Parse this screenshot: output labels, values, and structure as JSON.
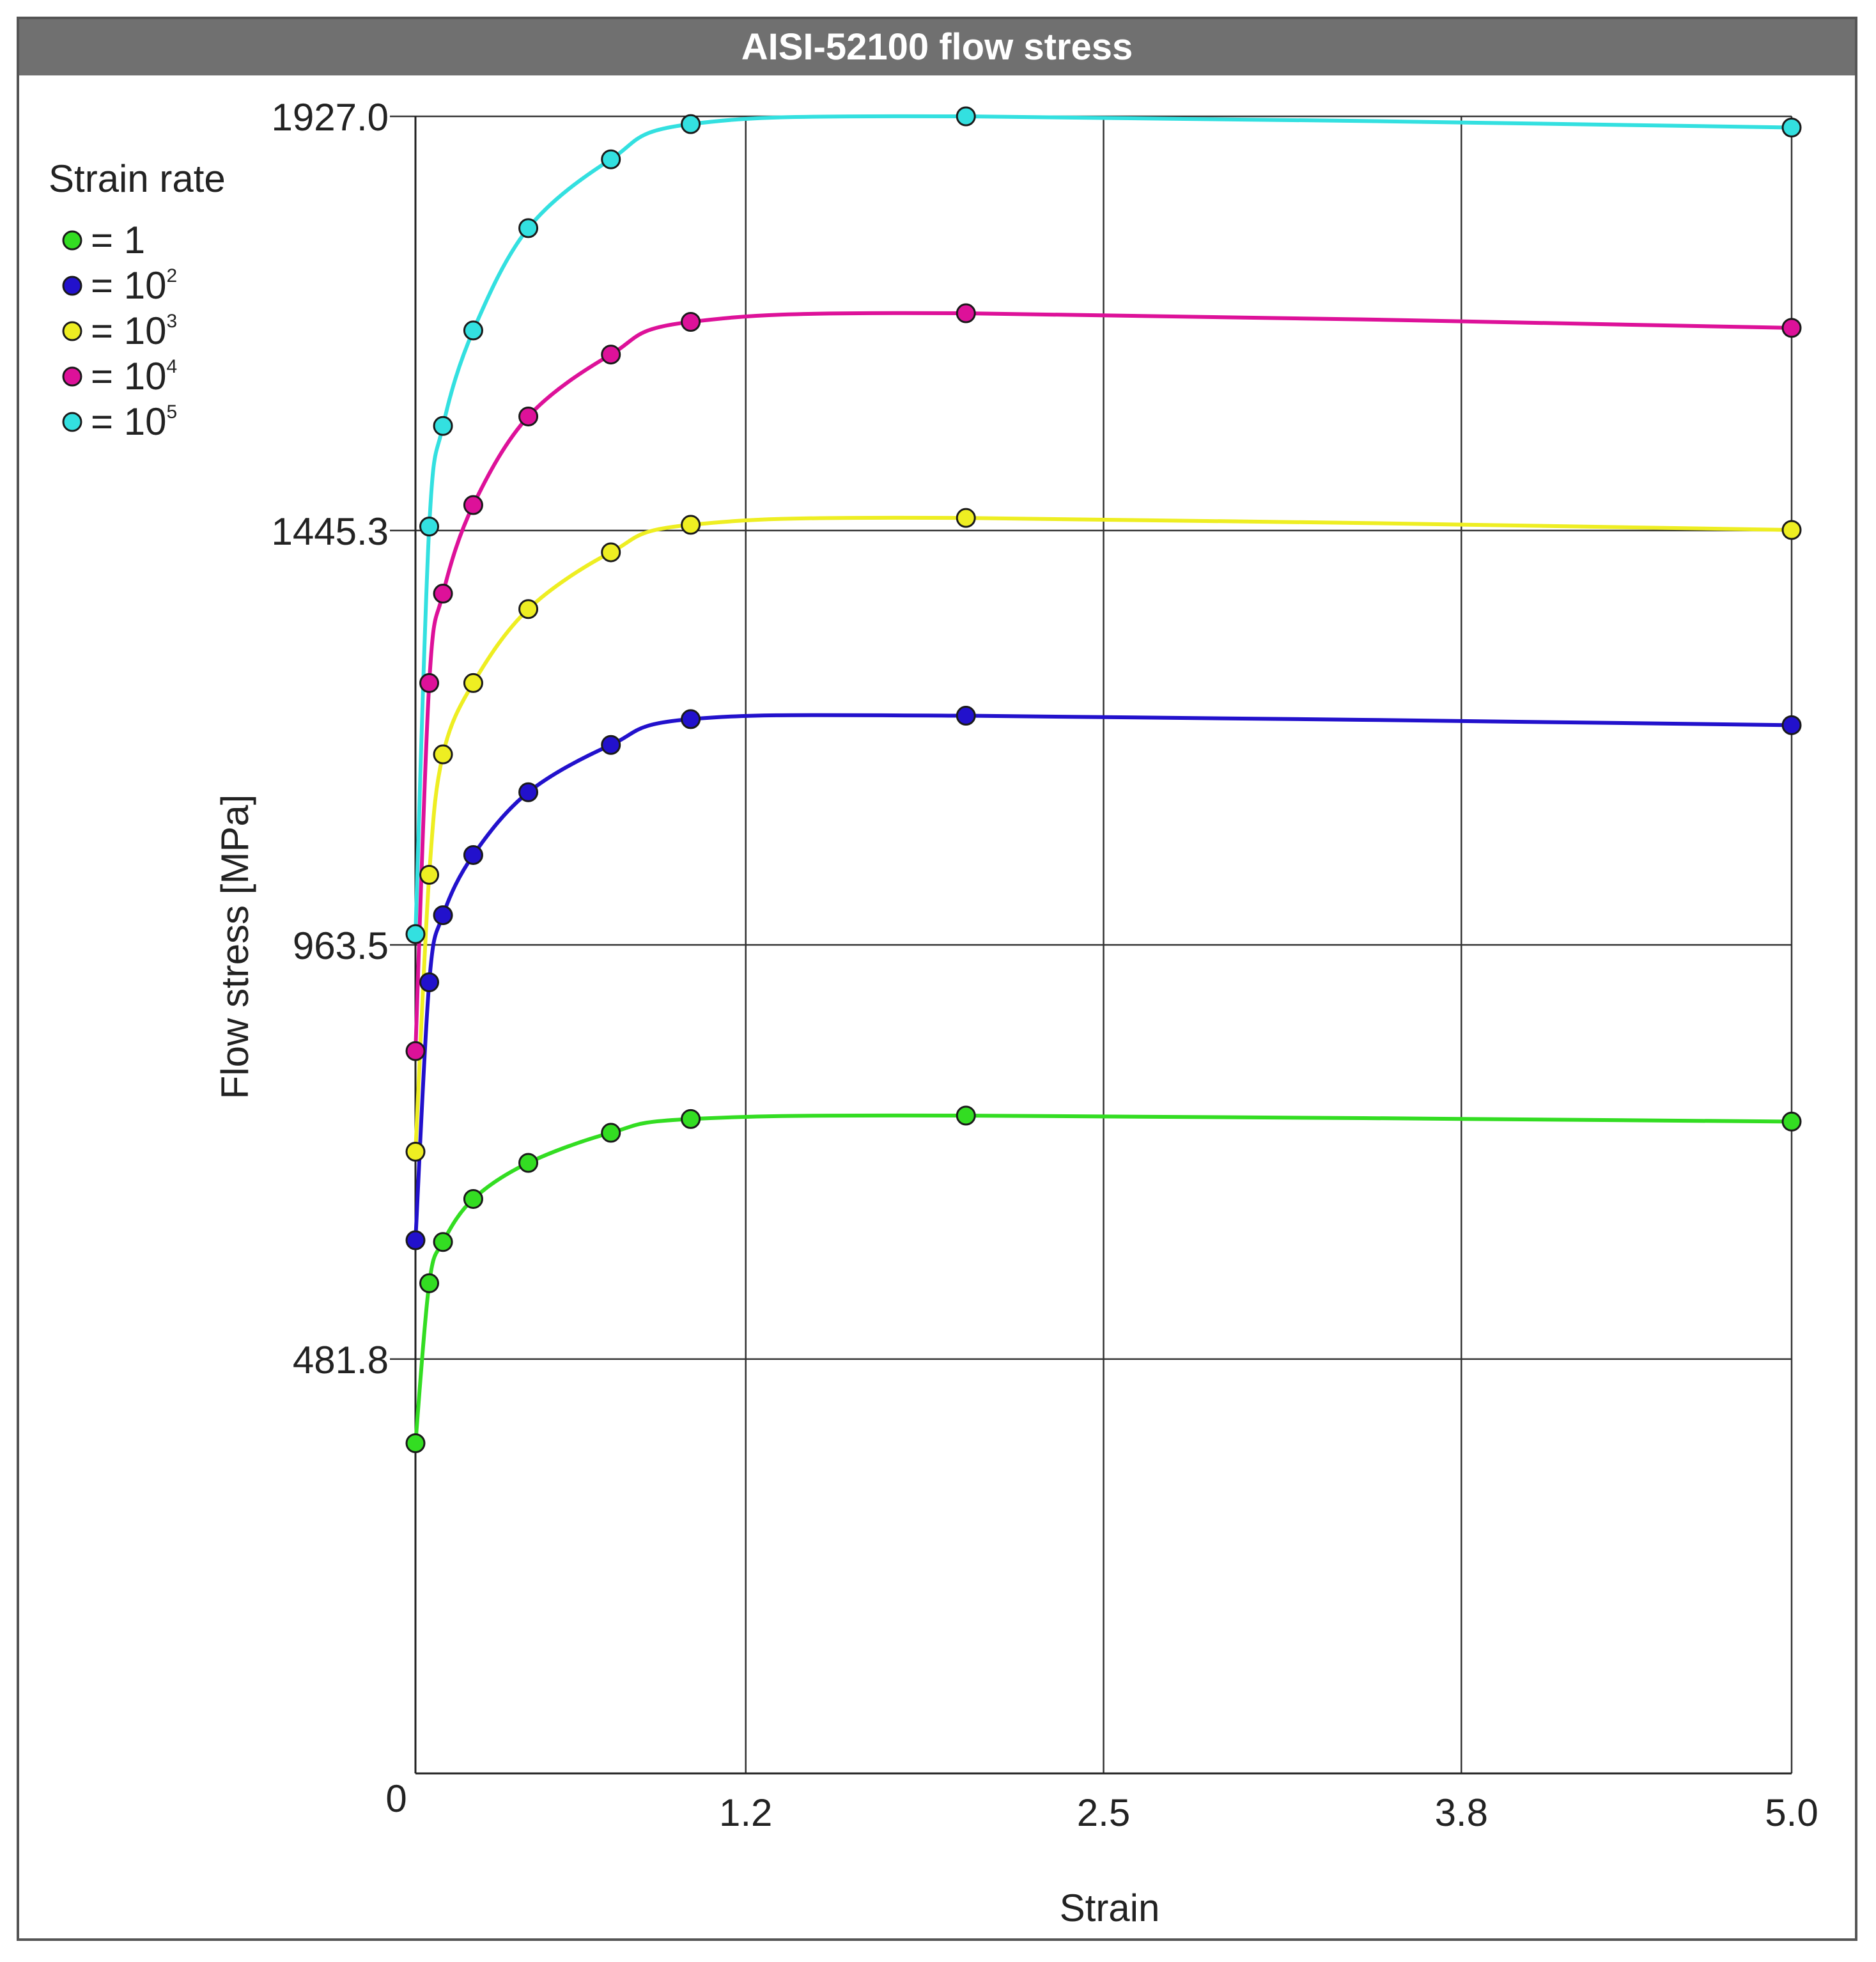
{
  "chart_data": {
    "type": "line",
    "title": "AISI-52100 flow stress",
    "xlabel": "Strain",
    "ylabel": "Flow stress [MPa]",
    "xlim": [
      0,
      5.0
    ],
    "ylim": [
      0,
      1927.0
    ],
    "x_ticks": [
      "0",
      "1.2",
      "2.5",
      "3.8",
      "5.0"
    ],
    "y_ticks": [
      "481.8",
      "963.5",
      "1445.3",
      "1927.0"
    ],
    "grid": true,
    "legend": {
      "title": "Strain rate",
      "position": "top-left",
      "entries": [
        {
          "prefix": "= ",
          "base": "1",
          "exp": ""
        },
        {
          "prefix": "= ",
          "base": "10",
          "exp": "2"
        },
        {
          "prefix": "= ",
          "base": "10",
          "exp": "3"
        },
        {
          "prefix": "= ",
          "base": "10",
          "exp": "4"
        },
        {
          "prefix": "= ",
          "base": "10",
          "exp": "5"
        }
      ]
    },
    "series": [
      {
        "color": "#33dd22",
        "points": [
          [
            0,
            384
          ],
          [
            0.05,
            570
          ],
          [
            0.1,
            618
          ],
          [
            0.21,
            668
          ],
          [
            0.41,
            710
          ],
          [
            0.71,
            745
          ],
          [
            1.0,
            761
          ],
          [
            2.0,
            765
          ],
          [
            5.0,
            758
          ]
        ]
      },
      {
        "color": "#2211cc",
        "points": [
          [
            0,
            620
          ],
          [
            0.05,
            920
          ],
          [
            0.1,
            998
          ],
          [
            0.21,
            1068
          ],
          [
            0.41,
            1141
          ],
          [
            0.71,
            1196
          ],
          [
            1.0,
            1226
          ],
          [
            2.0,
            1230
          ],
          [
            5.0,
            1219
          ]
        ]
      },
      {
        "color": "#eeee22",
        "points": [
          [
            0,
            723
          ],
          [
            0.05,
            1045
          ],
          [
            0.1,
            1185
          ],
          [
            0.21,
            1268
          ],
          [
            0.41,
            1354
          ],
          [
            0.71,
            1420
          ],
          [
            1.0,
            1452
          ],
          [
            2.0,
            1460
          ],
          [
            5.0,
            1446
          ]
        ]
      },
      {
        "color": "#dd1199",
        "points": [
          [
            0,
            840
          ],
          [
            0.05,
            1268
          ],
          [
            0.1,
            1372
          ],
          [
            0.21,
            1475
          ],
          [
            0.41,
            1578
          ],
          [
            0.71,
            1650
          ],
          [
            1.0,
            1688
          ],
          [
            2.0,
            1698
          ],
          [
            5.0,
            1681
          ]
        ]
      },
      {
        "color": "#33e0e0",
        "points": [
          [
            0,
            976
          ],
          [
            0.05,
            1450
          ],
          [
            0.1,
            1567
          ],
          [
            0.21,
            1678
          ],
          [
            0.41,
            1797
          ],
          [
            0.71,
            1877
          ],
          [
            1.0,
            1918
          ],
          [
            2.0,
            1927
          ],
          [
            5.0,
            1914
          ]
        ]
      }
    ]
  }
}
